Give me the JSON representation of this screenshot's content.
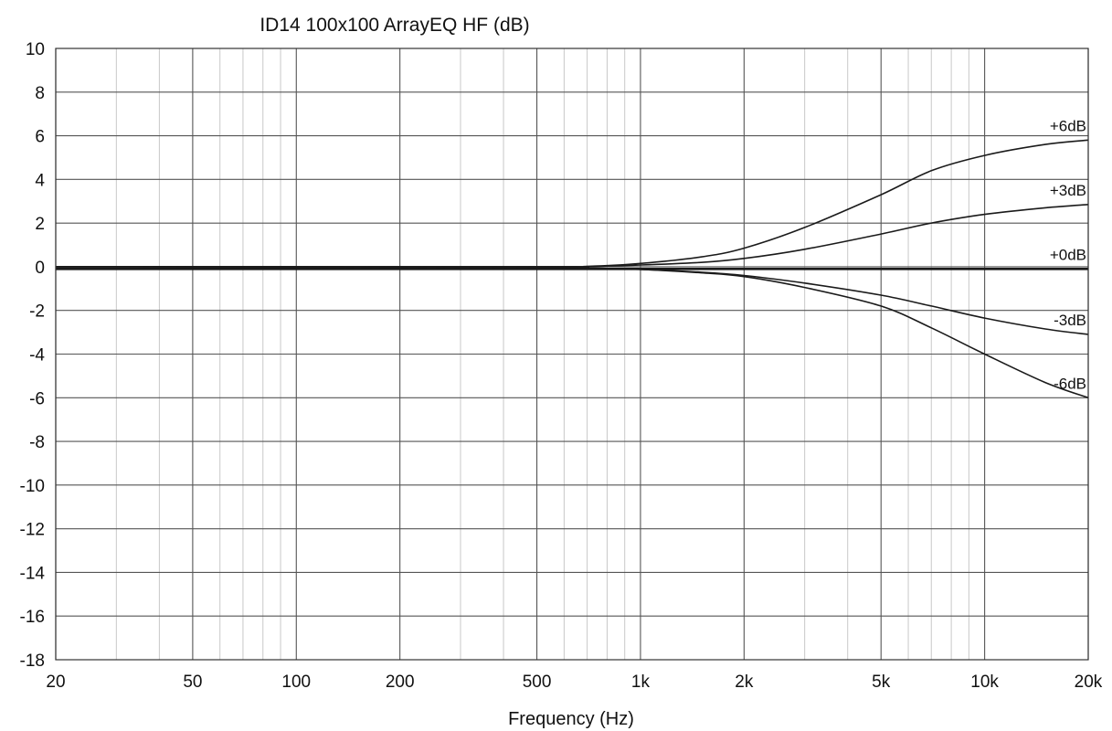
{
  "chart_data": {
    "type": "line",
    "title": "ID14 100x100 ArrayEQ HF (dB)",
    "xlabel": "Frequency (Hz)",
    "ylabel": "",
    "x_scale": "log",
    "xlim": [
      20,
      20000
    ],
    "ylim": [
      -18,
      10
    ],
    "grid": true,
    "x_ticks": [
      20,
      50,
      100,
      200,
      500,
      1000,
      2000,
      5000,
      10000,
      20000
    ],
    "x_tick_labels": [
      "20",
      "50",
      "100",
      "200",
      "500",
      "1k",
      "2k",
      "5k",
      "10k",
      "20k"
    ],
    "y_ticks": [
      10,
      8,
      6,
      4,
      2,
      0,
      -2,
      -4,
      -6,
      -8,
      -10,
      -12,
      -14,
      -16,
      -18
    ],
    "y_tick_labels": [
      "10",
      "8",
      "6",
      "4",
      "2",
      "0",
      "-2",
      "-4",
      "-6",
      "-8",
      "-10",
      "-12",
      "-14",
      "-16",
      "-18"
    ],
    "x": [
      20,
      500,
      700,
      1000,
      1500,
      2000,
      3000,
      5000,
      7000,
      10000,
      15000,
      20000
    ],
    "series": [
      {
        "name": "+6dB",
        "values": [
          0,
          0,
          0.02,
          0.15,
          0.45,
          0.85,
          1.8,
          3.3,
          4.4,
          5.1,
          5.6,
          5.8
        ]
      },
      {
        "name": "+3dB",
        "values": [
          0,
          0,
          0.01,
          0.08,
          0.2,
          0.38,
          0.8,
          1.5,
          2.0,
          2.4,
          2.7,
          2.85
        ]
      },
      {
        "name": "+0dB",
        "values": [
          -0.1,
          -0.1,
          -0.1,
          -0.1,
          -0.1,
          -0.1,
          -0.1,
          -0.1,
          -0.1,
          -0.1,
          -0.1,
          -0.1
        ]
      },
      {
        "name": "-3dB",
        "values": [
          0,
          -0.03,
          -0.06,
          -0.12,
          -0.25,
          -0.4,
          -0.75,
          -1.3,
          -1.8,
          -2.35,
          -2.85,
          -3.1
        ]
      },
      {
        "name": "-6dB",
        "values": [
          0,
          -0.03,
          -0.06,
          -0.12,
          -0.28,
          -0.45,
          -0.95,
          -1.8,
          -2.8,
          -4.0,
          -5.3,
          -6.0
        ]
      }
    ]
  }
}
